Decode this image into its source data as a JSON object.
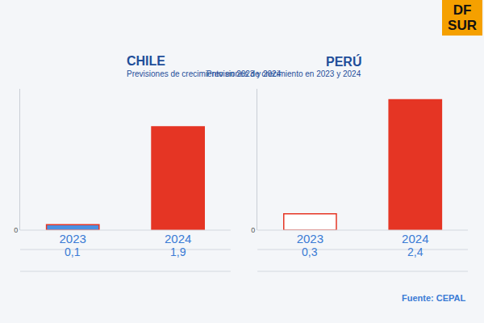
{
  "chart_data": [
    {
      "type": "bar",
      "title": "CHILE",
      "subtitle": "Previsiones de crecimiento en 2023 y 2024",
      "categories": [
        "2023",
        "2024"
      ],
      "values": [
        0.1,
        1.9
      ],
      "value_labels": [
        "0,1",
        "1,9"
      ],
      "colors": [
        "#4a90e2",
        "#e53524"
      ],
      "ylim": [
        0,
        2.6
      ],
      "yticks": [
        0
      ],
      "data_labels": true,
      "grid": false
    },
    {
      "type": "bar",
      "title": "PERÚ",
      "subtitle": "Previsiones de crecimiento en 2023 y 2024",
      "categories": [
        "2023",
        "2024"
      ],
      "values": [
        0.3,
        2.4
      ],
      "value_labels": [
        "0,3",
        "2,4"
      ],
      "colors": [
        "#ffffff",
        "#e53524"
      ],
      "ylim": [
        0,
        2.6
      ],
      "yticks": [
        0
      ],
      "data_labels": true,
      "grid": false
    }
  ],
  "source": "Fuente: CEPAL",
  "logo": "DF SUR"
}
